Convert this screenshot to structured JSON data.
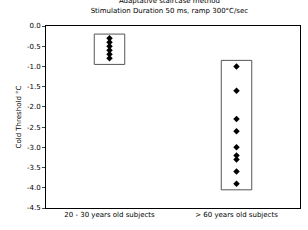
{
  "chart_data": {
    "type": "strip",
    "title": "Adaptative staircase method",
    "subtitle": "Stimulation Duration 50 ms, ramp 300°C/sec",
    "y_label": "Cold Threshold °C",
    "categories": [
      "20 - 30 years old subjects",
      "> 60 years old subjects"
    ],
    "values": [
      [
        -0.3,
        -0.4,
        -0.5,
        -0.6,
        -0.7,
        -0.8
      ],
      [
        -1.0,
        -1.6,
        -2.3,
        -2.6,
        -3.0,
        -3.2,
        -3.3,
        -3.6,
        -3.9
      ]
    ],
    "ranges": [
      [
        -0.95,
        -0.2
      ],
      [
        -4.05,
        -0.85
      ]
    ],
    "color": "#000000",
    "marker": "diamond",
    "ylim": [
      -4.5,
      0
    ],
    "yticks": [
      {
        "value": 0,
        "label": "0.0"
      },
      {
        "value": -0.5,
        "label": "-0.5"
      },
      {
        "value": -1,
        "label": "-1.0"
      },
      {
        "value": -1.5,
        "label": "-1.5"
      },
      {
        "value": -2,
        "label": "-2.0"
      },
      {
        "value": -2.5,
        "label": "-2.5"
      },
      {
        "value": -3,
        "label": "-3.0"
      },
      {
        "value": -3.5,
        "label": "-3.5"
      },
      {
        "value": -4,
        "label": "-4.0"
      },
      {
        "value": -4.5,
        "label": "-4.5"
      }
    ],
    "grid": false
  }
}
